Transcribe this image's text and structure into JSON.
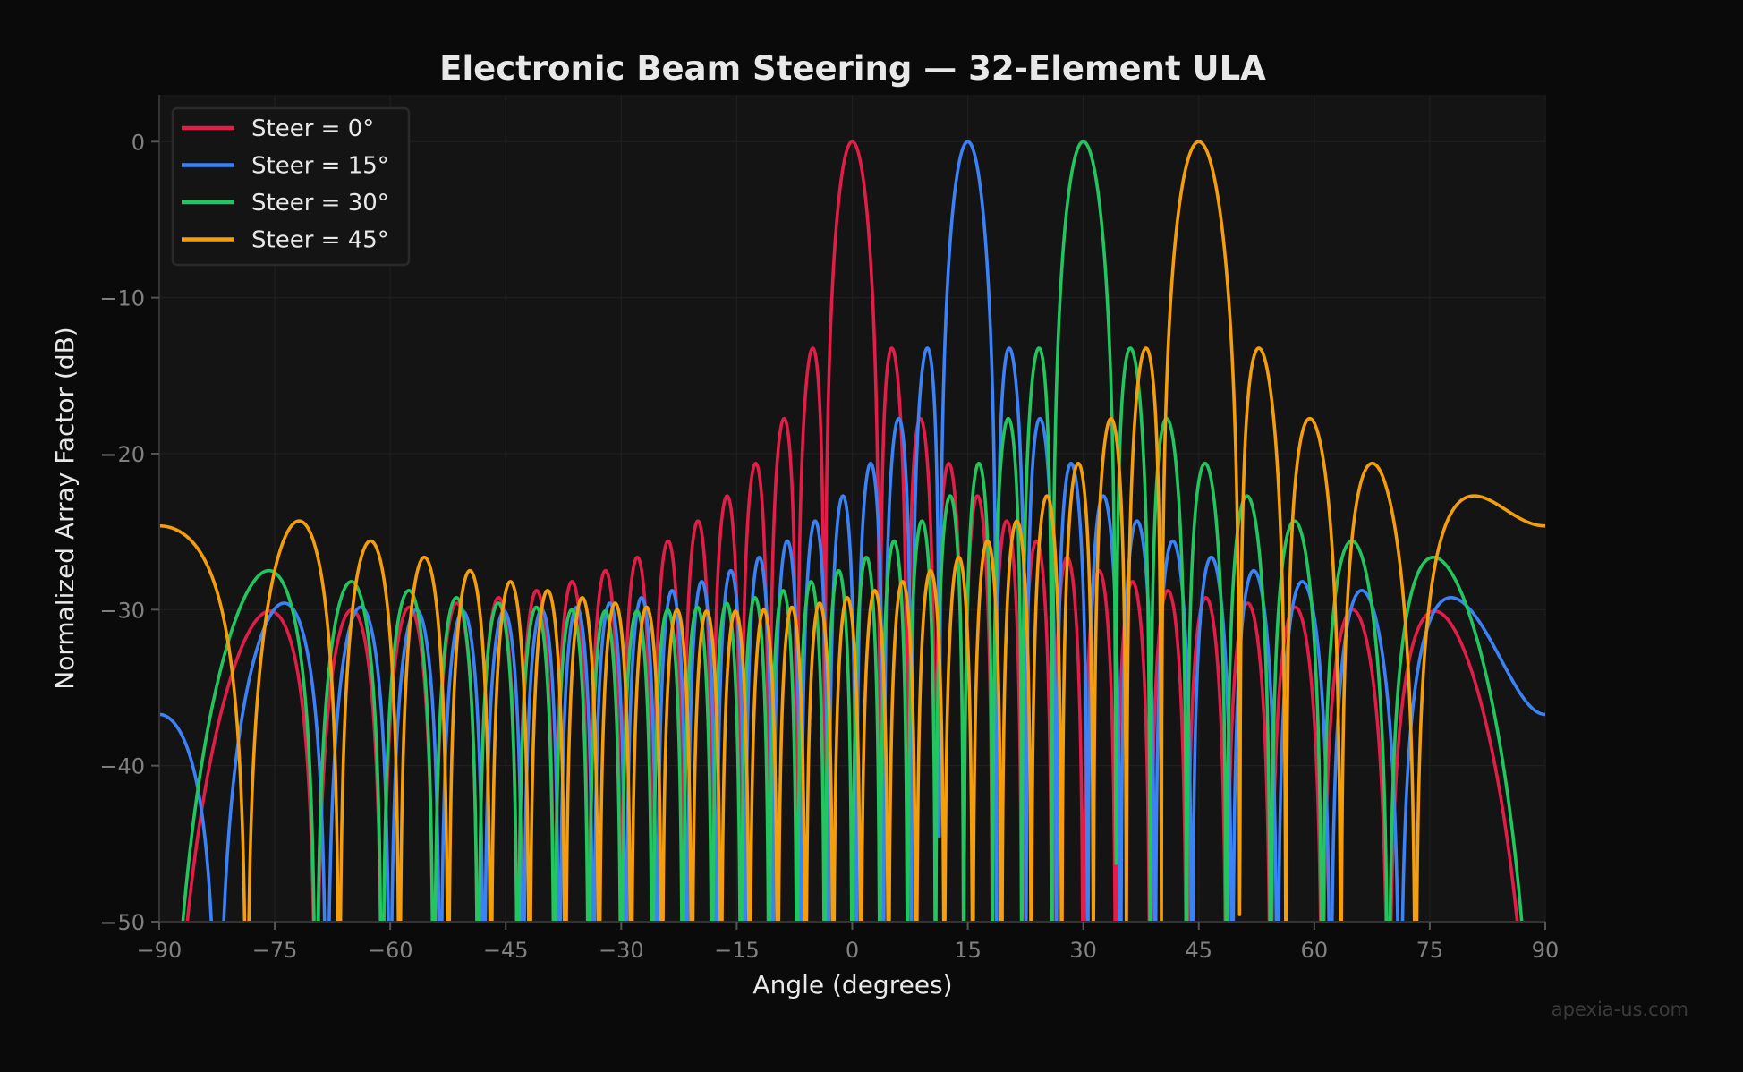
{
  "chart_data": {
    "type": "line",
    "title": "Electronic Beam Steering — 32-Element ULA",
    "xlabel": "Angle (degrees)",
    "ylabel": "Normalized Array Factor (dB)",
    "xlim": [
      -90,
      90
    ],
    "ylim": [
      -50,
      3
    ],
    "xticks": [
      -90,
      -75,
      -60,
      -45,
      -30,
      -15,
      0,
      15,
      30,
      45,
      60,
      75,
      90
    ],
    "yticks": [
      0,
      -10,
      -20,
      -30,
      -40,
      -50
    ],
    "grid": true,
    "legend_position": "top-left",
    "model": {
      "elements": 32,
      "element_spacing_wavelengths": 0.5,
      "formula": "AF(θ) = |sin(Nψ/2) / (N·sin(ψ/2))|, ψ = 2π·d·(sin θ − sin θ0), in dB"
    },
    "series": [
      {
        "name": "Steer = 0°",
        "steer_deg": 0,
        "color": "#e11d48"
      },
      {
        "name": "Steer = 15°",
        "steer_deg": 15,
        "color": "#3b82f6"
      },
      {
        "name": "Steer = 30°",
        "steer_deg": 30,
        "color": "#22c55e"
      },
      {
        "name": "Steer = 45°",
        "steer_deg": 45,
        "color": "#f59e0b"
      }
    ]
  },
  "watermark": "apexia-us.com",
  "colors": {
    "background": "#0a0a0a",
    "plot_background": "#141414",
    "grid": "#222222",
    "text": "#e8e8e8",
    "tick_text": "#808080"
  }
}
